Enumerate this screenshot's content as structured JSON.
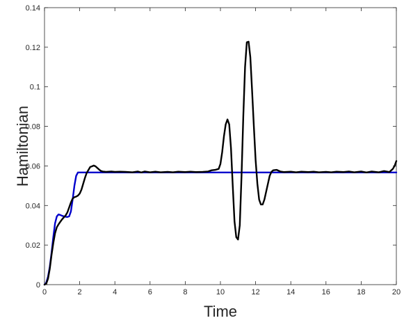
{
  "chart_data": {
    "type": "line",
    "title": "",
    "xlabel": "Time",
    "ylabel": "Hamiltonian",
    "xlim": [
      0,
      20
    ],
    "ylim": [
      0,
      0.14
    ],
    "xticks": [
      "0",
      "2",
      "4",
      "6",
      "8",
      "10",
      "12",
      "14",
      "16",
      "18",
      "20"
    ],
    "yticks": [
      "0",
      "0.02",
      "0.04",
      "0.06",
      "0.08",
      "0.1",
      "0.12",
      "0.14"
    ],
    "grid": false,
    "legend": "none",
    "series": [
      {
        "color": "#0000cc",
        "points": [
          [
            0,
            0
          ],
          [
            0.1,
            0.001
          ],
          [
            0.2,
            0.004
          ],
          [
            0.3,
            0.009
          ],
          [
            0.4,
            0.016
          ],
          [
            0.5,
            0.024
          ],
          [
            0.6,
            0.031
          ],
          [
            0.7,
            0.0345
          ],
          [
            0.8,
            0.0355
          ],
          [
            0.9,
            0.0352
          ],
          [
            1.0,
            0.0348
          ],
          [
            1.1,
            0.0345
          ],
          [
            1.2,
            0.0343
          ],
          [
            1.3,
            0.0342
          ],
          [
            1.4,
            0.0345
          ],
          [
            1.5,
            0.037
          ],
          [
            1.6,
            0.043
          ],
          [
            1.7,
            0.05
          ],
          [
            1.8,
            0.055
          ],
          [
            1.9,
            0.0567
          ],
          [
            2.0,
            0.0567
          ],
          [
            20.0,
            0.0567
          ]
        ]
      },
      {
        "color": "#000000",
        "points": [
          [
            0,
            0
          ],
          [
            0.1,
            0.0005
          ],
          [
            0.2,
            0.003
          ],
          [
            0.3,
            0.008
          ],
          [
            0.4,
            0.015
          ],
          [
            0.5,
            0.021
          ],
          [
            0.6,
            0.026
          ],
          [
            0.7,
            0.029
          ],
          [
            0.8,
            0.0305
          ],
          [
            0.9,
            0.0318
          ],
          [
            1.0,
            0.033
          ],
          [
            1.1,
            0.034
          ],
          [
            1.2,
            0.035
          ],
          [
            1.3,
            0.0365
          ],
          [
            1.4,
            0.039
          ],
          [
            1.5,
            0.0415
          ],
          [
            1.6,
            0.0435
          ],
          [
            1.7,
            0.0442
          ],
          [
            1.8,
            0.0445
          ],
          [
            1.9,
            0.045
          ],
          [
            2.0,
            0.046
          ],
          [
            2.1,
            0.048
          ],
          [
            2.2,
            0.051
          ],
          [
            2.3,
            0.054
          ],
          [
            2.4,
            0.0565
          ],
          [
            2.5,
            0.058
          ],
          [
            2.6,
            0.0595
          ],
          [
            2.7,
            0.0598
          ],
          [
            2.8,
            0.0602
          ],
          [
            2.9,
            0.0598
          ],
          [
            3.0,
            0.059
          ],
          [
            3.1,
            0.0582
          ],
          [
            3.2,
            0.0575
          ],
          [
            3.3,
            0.0572
          ],
          [
            3.5,
            0.057
          ],
          [
            3.8,
            0.0572
          ],
          [
            4.0,
            0.057
          ],
          [
            4.3,
            0.0571
          ],
          [
            4.6,
            0.057
          ],
          [
            5.0,
            0.0568
          ],
          [
            5.3,
            0.0572
          ],
          [
            5.5,
            0.0567
          ],
          [
            5.7,
            0.0572
          ],
          [
            6.0,
            0.0568
          ],
          [
            6.3,
            0.0571
          ],
          [
            6.6,
            0.0568
          ],
          [
            7.0,
            0.057
          ],
          [
            7.3,
            0.0568
          ],
          [
            7.6,
            0.0571
          ],
          [
            8.0,
            0.0569
          ],
          [
            8.3,
            0.0571
          ],
          [
            8.6,
            0.0569
          ],
          [
            9.0,
            0.057
          ],
          [
            9.3,
            0.0572
          ],
          [
            9.5,
            0.0578
          ],
          [
            9.7,
            0.058
          ],
          [
            9.9,
            0.0585
          ],
          [
            10.0,
            0.061
          ],
          [
            10.1,
            0.067
          ],
          [
            10.2,
            0.075
          ],
          [
            10.3,
            0.081
          ],
          [
            10.4,
            0.0835
          ],
          [
            10.5,
            0.081
          ],
          [
            10.6,
            0.069
          ],
          [
            10.7,
            0.05
          ],
          [
            10.8,
            0.032
          ],
          [
            10.9,
            0.024
          ],
          [
            11.0,
            0.0228
          ],
          [
            11.1,
            0.03
          ],
          [
            11.2,
            0.055
          ],
          [
            11.3,
            0.085
          ],
          [
            11.4,
            0.11
          ],
          [
            11.5,
            0.1225
          ],
          [
            11.6,
            0.1228
          ],
          [
            11.7,
            0.115
          ],
          [
            11.8,
            0.098
          ],
          [
            11.9,
            0.08
          ],
          [
            12.0,
            0.063
          ],
          [
            12.1,
            0.051
          ],
          [
            12.2,
            0.043
          ],
          [
            12.3,
            0.0405
          ],
          [
            12.4,
            0.0405
          ],
          [
            12.5,
            0.043
          ],
          [
            12.6,
            0.047
          ],
          [
            12.7,
            0.051
          ],
          [
            12.8,
            0.055
          ],
          [
            12.9,
            0.057
          ],
          [
            13.0,
            0.0578
          ],
          [
            13.2,
            0.058
          ],
          [
            13.4,
            0.0572
          ],
          [
            13.6,
            0.0569
          ],
          [
            14.0,
            0.0571
          ],
          [
            14.3,
            0.0568
          ],
          [
            14.6,
            0.0571
          ],
          [
            15.0,
            0.0569
          ],
          [
            15.3,
            0.0571
          ],
          [
            15.6,
            0.0568
          ],
          [
            16.0,
            0.057
          ],
          [
            16.3,
            0.0568
          ],
          [
            16.6,
            0.0571
          ],
          [
            17.0,
            0.0569
          ],
          [
            17.3,
            0.0572
          ],
          [
            17.6,
            0.0568
          ],
          [
            18.0,
            0.0572
          ],
          [
            18.3,
            0.0567
          ],
          [
            18.6,
            0.0572
          ],
          [
            19.0,
            0.0568
          ],
          [
            19.3,
            0.0574
          ],
          [
            19.6,
            0.0569
          ],
          [
            19.8,
            0.0585
          ],
          [
            19.9,
            0.06
          ],
          [
            20.0,
            0.0625
          ]
        ]
      }
    ]
  }
}
